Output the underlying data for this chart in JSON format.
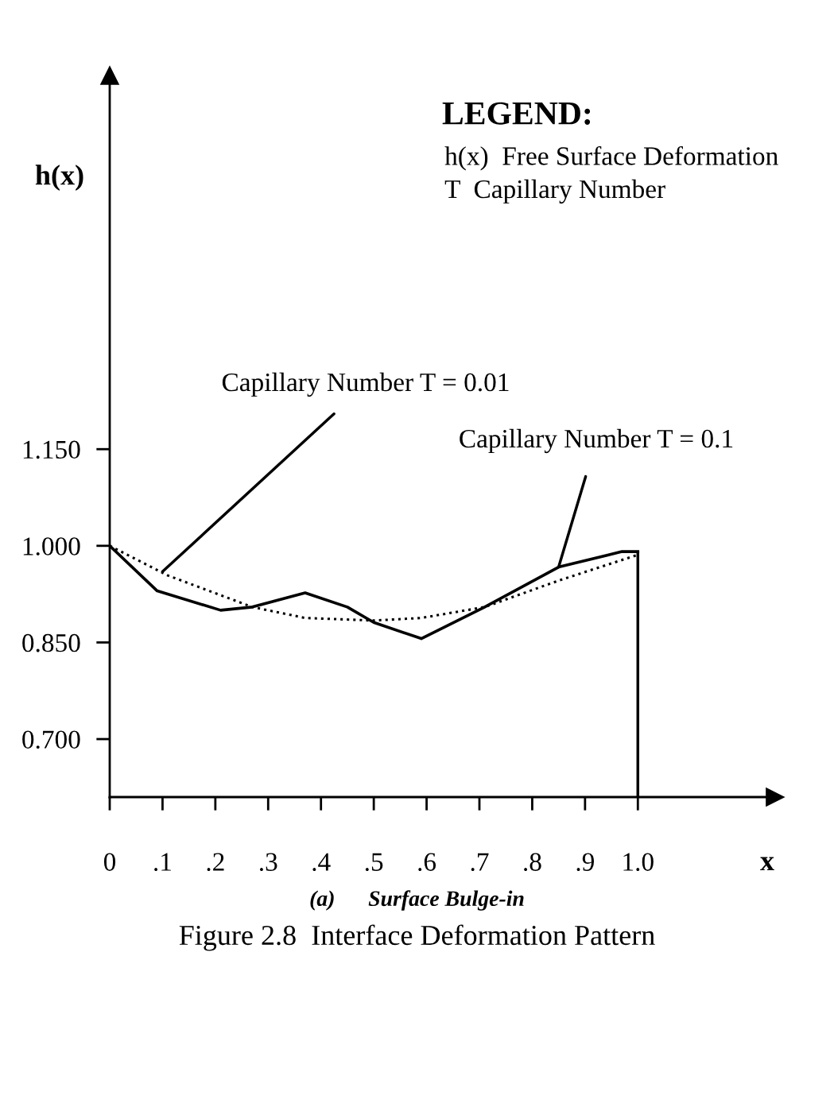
{
  "chart_data": {
    "type": "line",
    "title": "Figure 2.8  Interface Deformation Pattern",
    "subtitle": "(a)      Surface Bulge-in",
    "xlabel": "x",
    "ylabel": "h(x)",
    "xlim": [
      0,
      1.26
    ],
    "ylim": [
      0.61,
      1.73
    ],
    "xticks": [
      {
        "value": 0,
        "label": "0"
      },
      {
        "value": 0.1,
        "label": ".1"
      },
      {
        "value": 0.2,
        "label": ".2"
      },
      {
        "value": 0.3,
        "label": ".3"
      },
      {
        "value": 0.4,
        "label": ".4"
      },
      {
        "value": 0.5,
        "label": ".5"
      },
      {
        "value": 0.6,
        "label": ".6"
      },
      {
        "value": 0.7,
        "label": ".7"
      },
      {
        "value": 0.8,
        "label": ".8"
      },
      {
        "value": 0.9,
        "label": ".9"
      },
      {
        "value": 1.0,
        "label": "1.0"
      }
    ],
    "yticks": [
      {
        "value": 0.7,
        "label": "0.700"
      },
      {
        "value": 0.85,
        "label": "0.850"
      },
      {
        "value": 1.0,
        "label": "1.000"
      },
      {
        "value": 1.15,
        "label": "1.150"
      }
    ],
    "series": [
      {
        "color": "#000000",
        "line_style": "solid",
        "x": [
          0,
          0.09,
          0.21,
          0.27,
          0.37,
          0.45,
          0.5,
          0.59,
          0.71,
          0.85,
          0.97,
          1.0
        ],
        "values": [
          1.0,
          0.93,
          0.9,
          0.905,
          0.927,
          0.905,
          0.881,
          0.856,
          0.905,
          0.967,
          0.991,
          0.991
        ]
      },
      {
        "color": "#000000",
        "line_style": "dotted",
        "x": [
          0,
          0.11,
          0.27,
          0.37,
          0.5,
          0.59,
          0.71,
          0.85,
          1.0
        ],
        "values": [
          1.0,
          0.954,
          0.905,
          0.888,
          0.884,
          0.888,
          0.905,
          0.946,
          0.986
        ]
      }
    ],
    "ref_lines": [
      {
        "axis": "x",
        "value": 1.0
      }
    ],
    "annotations": [
      {
        "text": "Capillary Number T = 0.01",
        "x": 0.1,
        "y": 0.96
      },
      {
        "text": "Capillary Number T = 0.1",
        "x": 0.85,
        "y": 0.967
      },
      "LEGEND:",
      "h(x)  Free Surface Deformation",
      "T  Capillary Number"
    ],
    "grid": false,
    "legend": false
  }
}
